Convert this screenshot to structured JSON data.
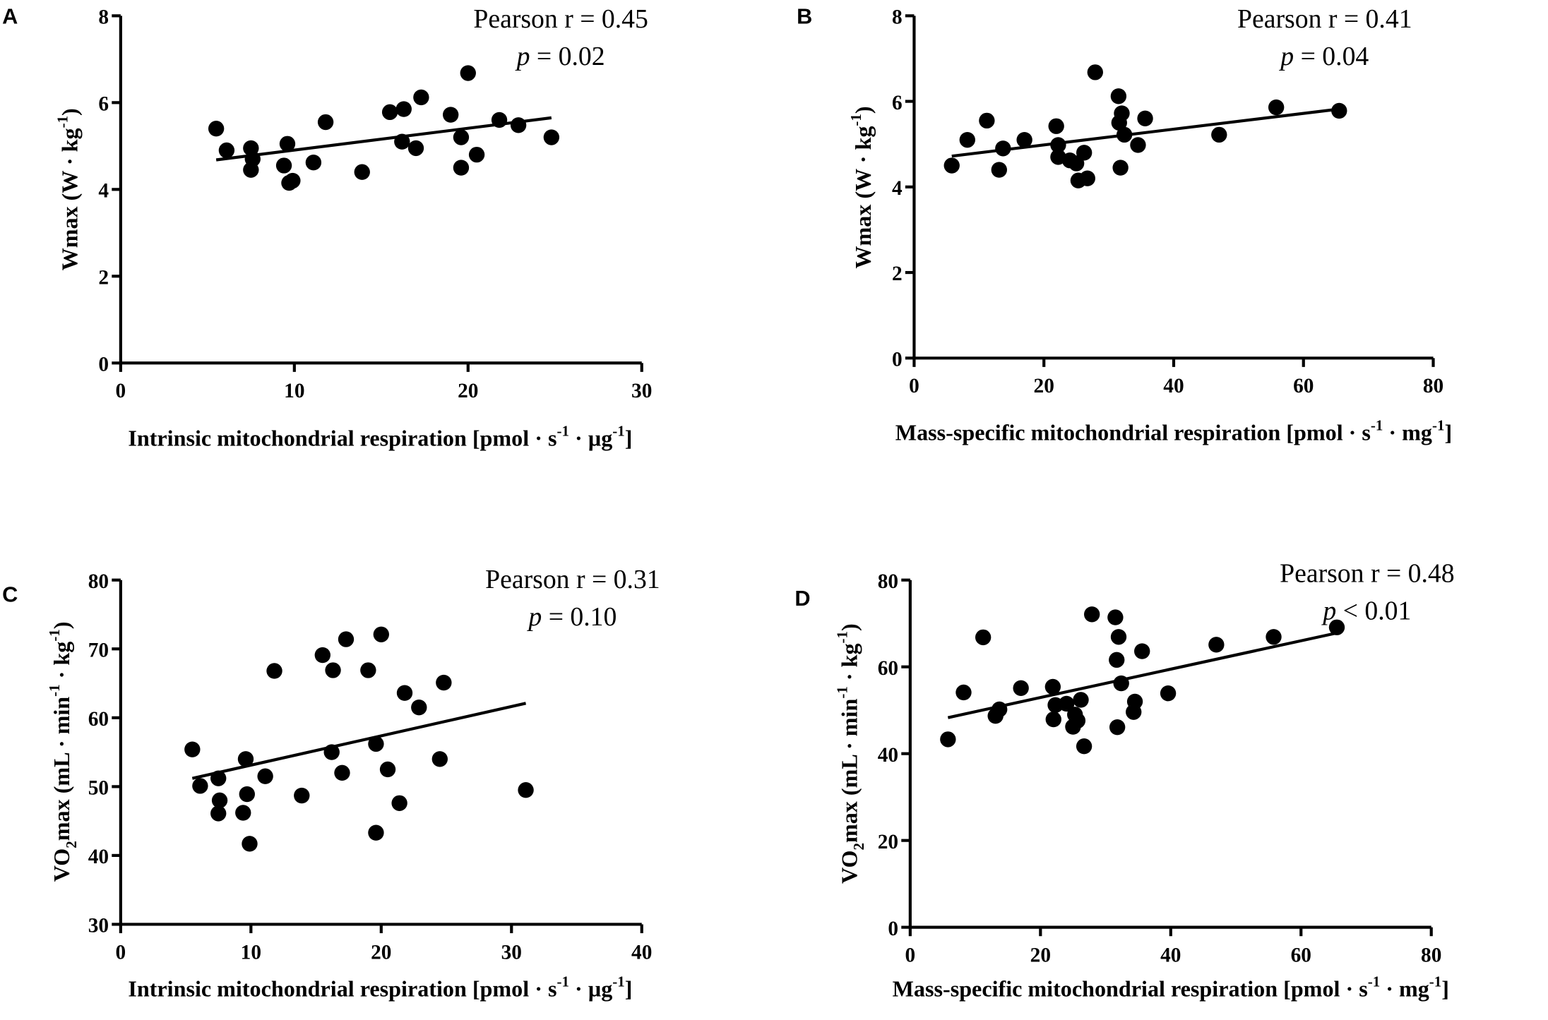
{
  "chart_data": [
    {
      "type": "scatter",
      "panel": "A",
      "annotation": {
        "r_text": "Pearson r = 0.45",
        "p_symbol": "p",
        "p_text": " = 0.02"
      },
      "xlabel": {
        "main": "Intrinsic mitochondrial respiration [pmol · s",
        "sup1": "-1",
        "mid": " · µg",
        "sup2": "-1",
        "end": "]"
      },
      "ylabel": {
        "main": "Wmax (W · kg",
        "sup1": "-1",
        "end": ")"
      },
      "xlim": [
        0,
        30
      ],
      "ylim": [
        0,
        8
      ],
      "xticks": [
        "0",
        "10",
        "20",
        "30"
      ],
      "yticks": [
        "0",
        "2",
        "4",
        "6",
        "8"
      ],
      "points": [
        [
          5.5,
          5.4
        ],
        [
          6.1,
          4.9
        ],
        [
          7.5,
          4.95
        ],
        [
          7.6,
          4.7
        ],
        [
          7.5,
          4.45
        ],
        [
          9.4,
          4.55
        ],
        [
          9.6,
          5.05
        ],
        [
          9.7,
          4.15
        ],
        [
          9.9,
          4.2
        ],
        [
          11.1,
          4.62
        ],
        [
          11.8,
          5.55
        ],
        [
          13.9,
          4.4
        ],
        [
          15.5,
          5.78
        ],
        [
          16.2,
          5.1
        ],
        [
          16.3,
          5.85
        ],
        [
          17.0,
          4.95
        ],
        [
          17.3,
          6.12
        ],
        [
          19.0,
          5.72
        ],
        [
          19.6,
          5.2
        ],
        [
          19.6,
          4.5
        ],
        [
          20.0,
          6.68
        ],
        [
          20.5,
          4.8
        ],
        [
          21.8,
          5.6
        ],
        [
          22.9,
          5.48
        ],
        [
          24.8,
          5.2
        ]
      ],
      "fit_line": [
        [
          5.5,
          4.68
        ],
        [
          24.8,
          5.65
        ]
      ]
    },
    {
      "type": "scatter",
      "panel": "B",
      "annotation": {
        "r_text": "Pearson r = 0.41",
        "p_symbol": "p",
        "p_text": " = 0.04"
      },
      "xlabel": {
        "main": "Mass-specific mitochondrial respiration [pmol · s",
        "sup1": "-1",
        "mid": " · mg",
        "sup2": "-1",
        "end": "]"
      },
      "ylabel": {
        "main": "Wmax (W · kg",
        "sup1": "-1",
        "end": ")"
      },
      "xlim": [
        0,
        80
      ],
      "ylim": [
        0,
        8
      ],
      "xticks": [
        "0",
        "20",
        "40",
        "60",
        "80"
      ],
      "yticks": [
        "0",
        "2",
        "4",
        "6",
        "8"
      ],
      "points": [
        [
          5.8,
          4.5
        ],
        [
          8.2,
          5.1
        ],
        [
          11.2,
          5.55
        ],
        [
          13.1,
          4.4
        ],
        [
          13.7,
          4.9
        ],
        [
          17.0,
          5.1
        ],
        [
          21.9,
          5.42
        ],
        [
          22.2,
          4.98
        ],
        [
          22.2,
          4.7
        ],
        [
          24.0,
          4.62
        ],
        [
          25.0,
          4.55
        ],
        [
          25.3,
          4.15
        ],
        [
          26.2,
          4.8
        ],
        [
          26.7,
          4.2
        ],
        [
          27.9,
          6.68
        ],
        [
          31.5,
          6.12
        ],
        [
          31.6,
          5.5
        ],
        [
          31.8,
          4.45
        ],
        [
          32.0,
          5.72
        ],
        [
          32.4,
          5.22
        ],
        [
          34.5,
          4.98
        ],
        [
          35.6,
          5.6
        ],
        [
          47.0,
          5.22
        ],
        [
          55.8,
          5.86
        ],
        [
          65.5,
          5.78
        ]
      ],
      "fit_line": [
        [
          5.8,
          4.72
        ],
        [
          65.5,
          5.82
        ]
      ]
    },
    {
      "type": "scatter",
      "panel": "C",
      "annotation": {
        "r_text": "Pearson r = 0.31",
        "p_symbol": "p",
        "p_text": " = 0.10"
      },
      "xlabel": {
        "main": "Intrinsic mitochondrial respiration [pmol · s",
        "sup1": "-1",
        "mid": " · µg",
        "sup2": "-1",
        "end": "]"
      },
      "ylabel": {
        "main": "VO",
        "sub": "2",
        "main2": "max (mL · min",
        "sup1": "-1",
        "mid": " · kg",
        "sup2": "-1",
        "end": ")"
      },
      "xlim": [
        0,
        40
      ],
      "ylim": [
        30,
        80
      ],
      "xticks": [
        "0",
        "10",
        "20",
        "30",
        "40"
      ],
      "yticks": [
        "30",
        "40",
        "50",
        "60",
        "70",
        "80"
      ],
      "points": [
        [
          5.5,
          55.4
        ],
        [
          6.1,
          50.1
        ],
        [
          7.5,
          51.2
        ],
        [
          7.6,
          48.0
        ],
        [
          7.5,
          46.1
        ],
        [
          9.4,
          46.2
        ],
        [
          9.6,
          54.0
        ],
        [
          9.7,
          48.9
        ],
        [
          9.9,
          41.7
        ],
        [
          11.1,
          51.5
        ],
        [
          11.8,
          66.8
        ],
        [
          13.9,
          48.7
        ],
        [
          15.5,
          69.1
        ],
        [
          16.2,
          55.0
        ],
        [
          16.3,
          66.9
        ],
        [
          17.0,
          52.0
        ],
        [
          17.3,
          71.4
        ],
        [
          19.0,
          66.9
        ],
        [
          19.6,
          56.2
        ],
        [
          19.6,
          43.3
        ],
        [
          20.0,
          72.1
        ],
        [
          20.5,
          52.5
        ],
        [
          21.4,
          47.6
        ],
        [
          21.8,
          63.6
        ],
        [
          22.9,
          61.5
        ],
        [
          24.5,
          54.0
        ],
        [
          24.8,
          65.1
        ],
        [
          31.1,
          49.5
        ]
      ],
      "fit_line": [
        [
          5.5,
          51.2
        ],
        [
          31.1,
          62.1
        ]
      ]
    },
    {
      "type": "scatter",
      "panel": "D",
      "annotation": {
        "r_text": "Pearson r = 0.48",
        "p_symbol": "p",
        "p_text": " < 0.01"
      },
      "xlabel": {
        "main": "Mass-specific mitochondrial respiration  [pmol · s",
        "sup1": "-1",
        "mid": " · mg",
        "sup2": "-1",
        "end": "]"
      },
      "ylabel": {
        "main": "VO",
        "sub": "2",
        "main2": "max (mL · min",
        "sup1": "-1",
        "mid": " · kg",
        "sup2": "-1",
        "end": ")"
      },
      "xlim": [
        0,
        80
      ],
      "ylim": [
        0,
        80
      ],
      "xticks": [
        "0",
        "20",
        "40",
        "60",
        "80"
      ],
      "yticks": [
        "0",
        "20",
        "40",
        "60",
        "80"
      ],
      "points": [
        [
          5.8,
          43.3
        ],
        [
          8.2,
          54.1
        ],
        [
          11.2,
          66.8
        ],
        [
          13.1,
          48.7
        ],
        [
          13.7,
          50.2
        ],
        [
          17.0,
          55.1
        ],
        [
          21.9,
          55.4
        ],
        [
          22.0,
          47.9
        ],
        [
          22.3,
          51.2
        ],
        [
          24.0,
          51.5
        ],
        [
          25.0,
          46.2
        ],
        [
          25.3,
          49.0
        ],
        [
          25.7,
          47.6
        ],
        [
          26.2,
          52.4
        ],
        [
          26.7,
          41.7
        ],
        [
          27.9,
          72.1
        ],
        [
          31.5,
          71.4
        ],
        [
          31.7,
          61.6
        ],
        [
          31.8,
          46.1
        ],
        [
          32.0,
          66.9
        ],
        [
          32.4,
          56.2
        ],
        [
          34.3,
          49.6
        ],
        [
          34.5,
          52.0
        ],
        [
          35.6,
          63.6
        ],
        [
          39.6,
          53.9
        ],
        [
          47.0,
          65.1
        ],
        [
          55.8,
          66.9
        ],
        [
          65.5,
          69.1
        ]
      ],
      "fit_line": [
        [
          5.8,
          48.3
        ],
        [
          65.5,
          67.8
        ]
      ]
    }
  ]
}
